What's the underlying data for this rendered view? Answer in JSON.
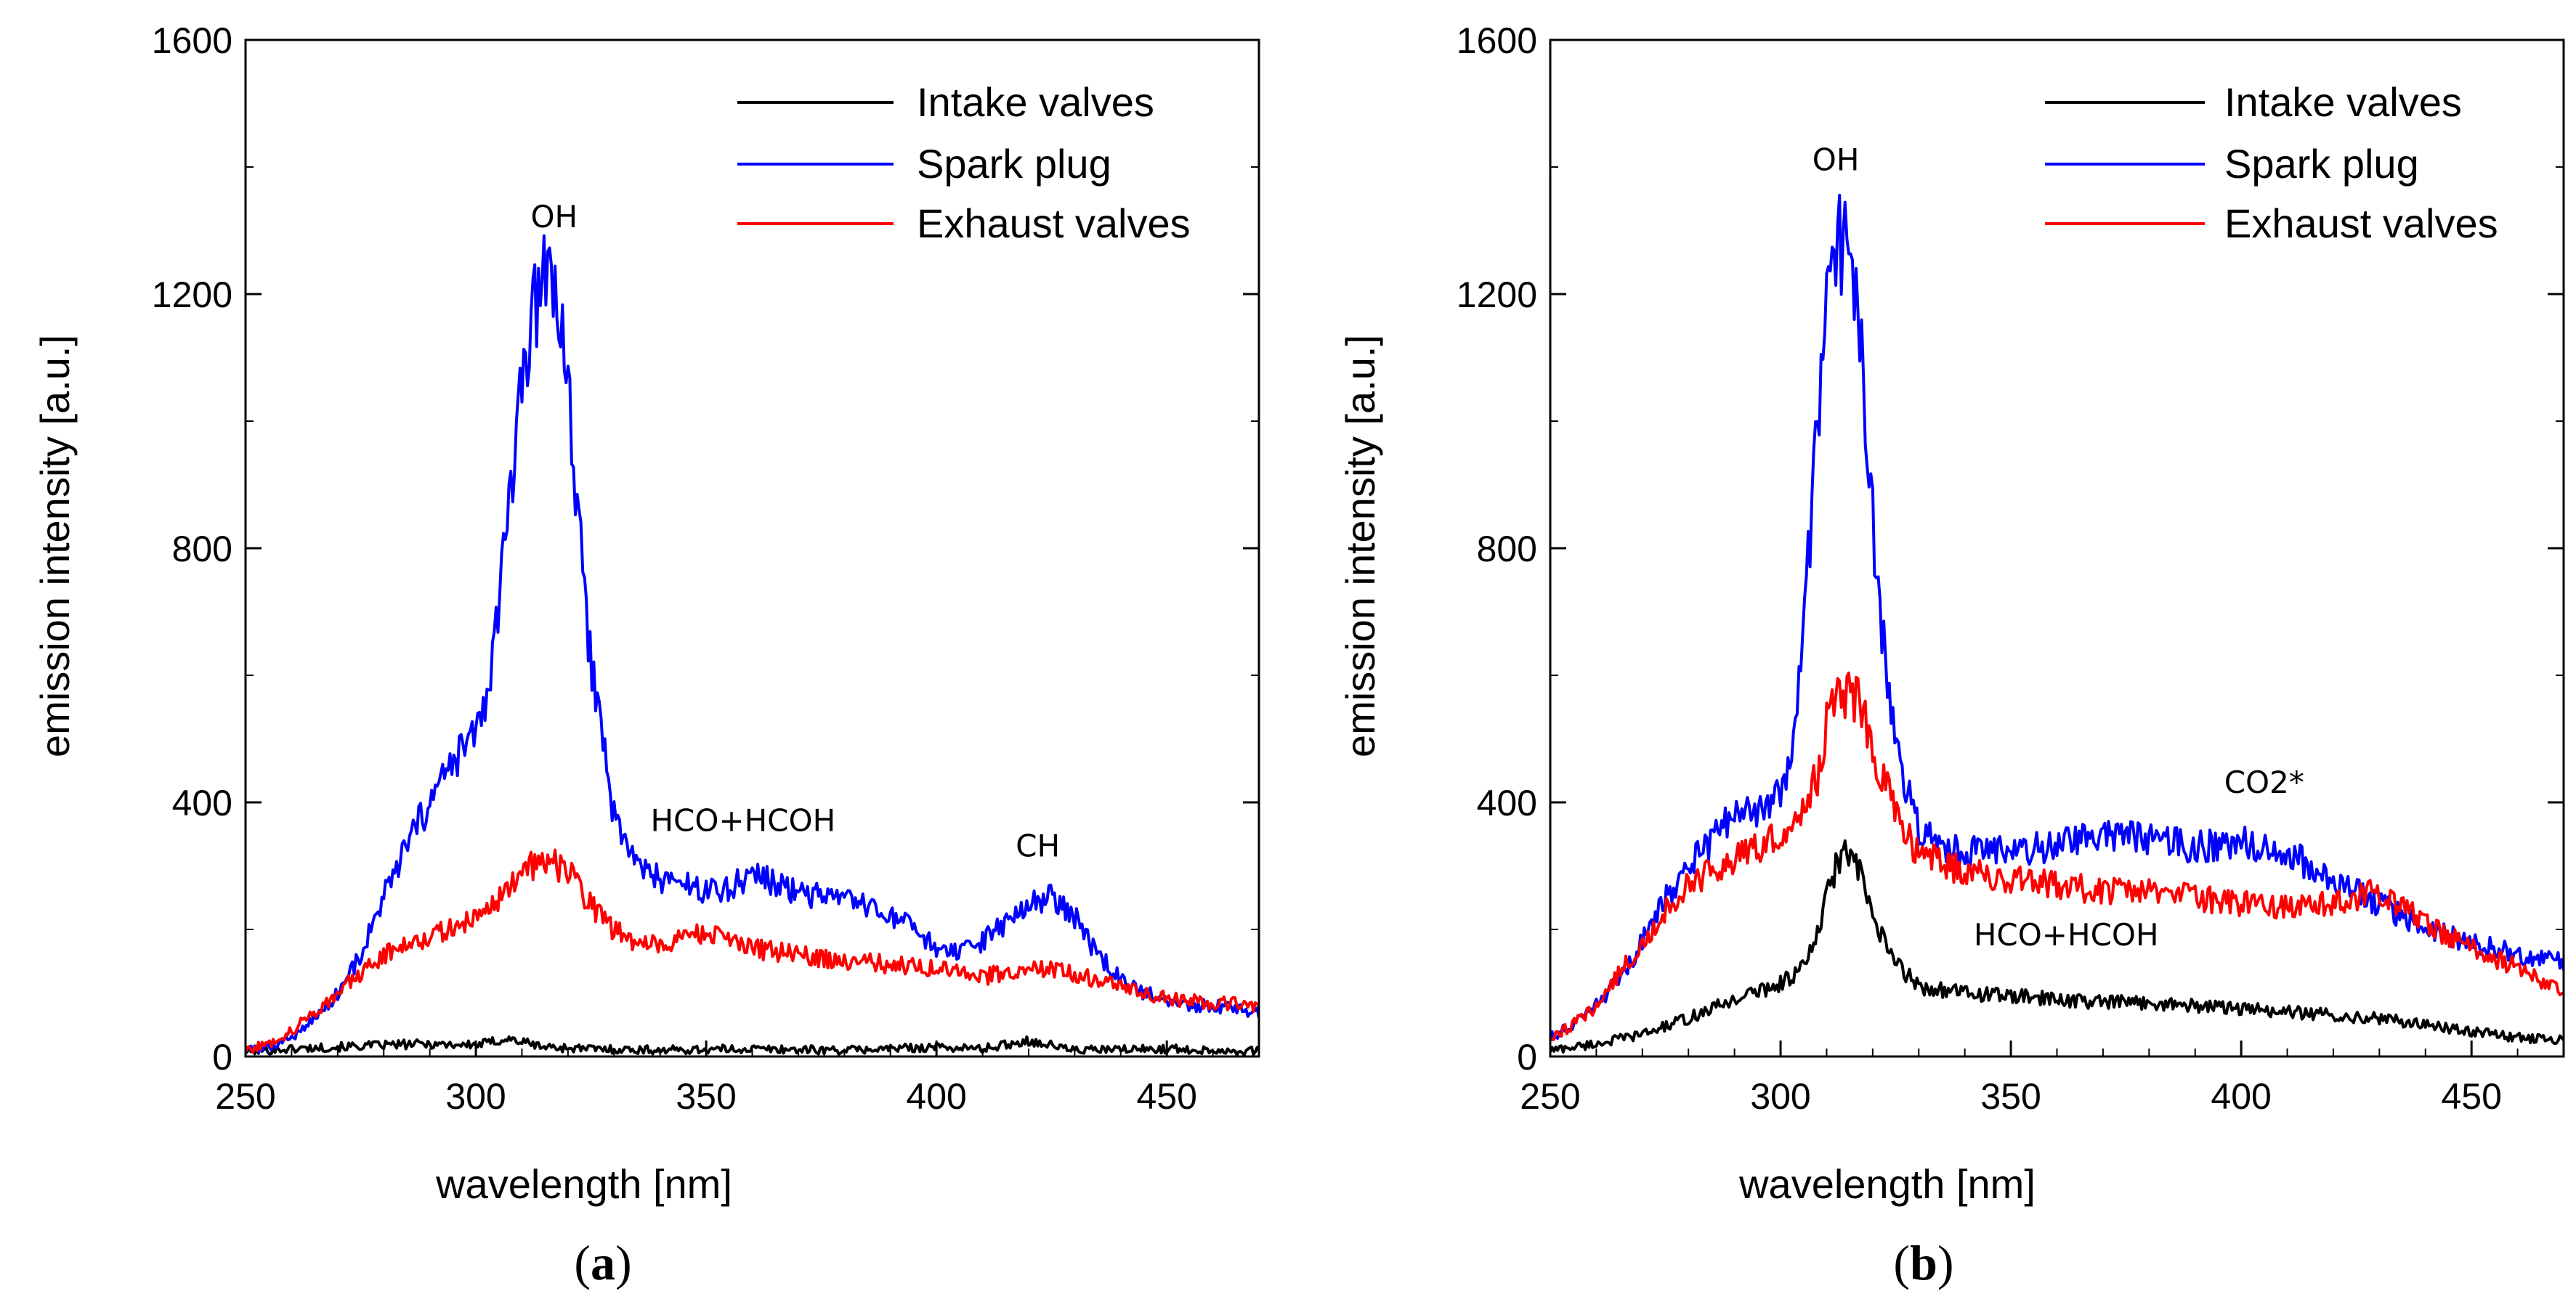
{
  "chart_data": [
    {
      "type": "line",
      "panel_label": "a",
      "xlabel": "wavelength [nm]",
      "ylabel": "emission intensity [a.u.]",
      "xlim": [
        250,
        470
      ],
      "ylim": [
        0,
        1600
      ],
      "xticks": [
        250,
        300,
        350,
        400,
        450
      ],
      "yticks": [
        0,
        400,
        800,
        1200,
        1600
      ],
      "legend_position": "top-right",
      "series": [
        {
          "name": "Intake valves",
          "color": "#000000",
          "x": [
            250,
            260,
            270,
            280,
            290,
            300,
            307,
            315,
            325,
            340,
            360,
            380,
            400,
            410,
            420,
            430,
            450,
            470
          ],
          "values": [
            8,
            12,
            15,
            18,
            20,
            18,
            28,
            15,
            12,
            10,
            12,
            10,
            15,
            12,
            25,
            10,
            12,
            8
          ]
        },
        {
          "name": "Spark plug",
          "color": "#0000ff",
          "x": [
            250,
            255,
            260,
            265,
            270,
            275,
            280,
            285,
            290,
            295,
            300,
            303,
            305,
            308,
            310,
            312,
            314,
            316,
            318,
            320,
            322,
            325,
            328,
            330,
            335,
            340,
            345,
            350,
            355,
            360,
            365,
            370,
            375,
            380,
            385,
            390,
            395,
            400,
            405,
            410,
            415,
            420,
            425,
            430,
            435,
            440,
            445,
            450,
            455,
            460,
            465,
            470
          ],
          "values": [
            10,
            15,
            30,
            60,
            100,
            160,
            250,
            330,
            400,
            460,
            510,
            580,
            720,
            900,
            1050,
            1150,
            1210,
            1250,
            1180,
            1050,
            850,
            620,
            480,
            380,
            300,
            280,
            270,
            260,
            265,
            290,
            270,
            260,
            250,
            245,
            235,
            220,
            200,
            170,
            160,
            180,
            210,
            240,
            250,
            220,
            160,
            120,
            100,
            90,
            80,
            80,
            75,
            70
          ]
        },
        {
          "name": "Exhaust valves",
          "color": "#ff0000",
          "x": [
            250,
            255,
            260,
            265,
            270,
            275,
            280,
            285,
            290,
            295,
            300,
            305,
            310,
            315,
            320,
            325,
            330,
            335,
            340,
            345,
            350,
            355,
            360,
            370,
            380,
            390,
            400,
            410,
            420,
            430,
            440,
            450,
            460,
            470
          ],
          "values": [
            10,
            20,
            40,
            70,
            100,
            130,
            160,
            180,
            190,
            200,
            220,
            250,
            290,
            310,
            290,
            240,
            200,
            180,
            175,
            190,
            195,
            180,
            170,
            160,
            150,
            145,
            140,
            125,
            140,
            130,
            110,
            90,
            85,
            80
          ]
        }
      ],
      "annotations": [
        {
          "text": "OH",
          "x": 317,
          "y": 1305
        },
        {
          "text": "HCO+HCOH",
          "x": 358,
          "y": 355
        },
        {
          "text": "CH",
          "x": 422,
          "y": 315
        }
      ]
    },
    {
      "type": "line",
      "panel_label": "b",
      "xlabel": "wavelength [nm]",
      "ylabel": "emission intensity [a.u.]",
      "xlim": [
        250,
        470
      ],
      "ylim": [
        0,
        1600
      ],
      "xticks": [
        250,
        300,
        350,
        400,
        450
      ],
      "yticks": [
        0,
        400,
        800,
        1200,
        1600
      ],
      "legend_position": "top-right",
      "series": [
        {
          "name": "Intake valves",
          "color": "#000000",
          "x": [
            250,
            260,
            270,
            280,
            290,
            300,
            305,
            308,
            310,
            312,
            314,
            316,
            318,
            320,
            323,
            326,
            330,
            340,
            350,
            360,
            370,
            380,
            390,
            400,
            410,
            420,
            430,
            440,
            450,
            460,
            470
          ],
          "values": [
            10,
            20,
            35,
            60,
            90,
            115,
            140,
            190,
            250,
            300,
            320,
            310,
            270,
            220,
            170,
            140,
            110,
            100,
            95,
            90,
            85,
            85,
            80,
            75,
            70,
            65,
            60,
            50,
            40,
            30,
            25
          ]
        },
        {
          "name": "Spark plug",
          "color": "#0000ff",
          "x": [
            250,
            255,
            260,
            265,
            270,
            275,
            280,
            285,
            290,
            295,
            300,
            303,
            305,
            307,
            309,
            311,
            313,
            315,
            317,
            319,
            321,
            323,
            326,
            330,
            335,
            340,
            350,
            360,
            370,
            380,
            390,
            400,
            410,
            420,
            430,
            440,
            450,
            460,
            470
          ],
          "values": [
            30,
            50,
            80,
            120,
            180,
            250,
            300,
            340,
            380,
            380,
            420,
            500,
            650,
            900,
            1100,
            1230,
            1280,
            1250,
            1150,
            950,
            750,
            600,
            450,
            360,
            330,
            320,
            325,
            330,
            350,
            340,
            330,
            340,
            320,
            280,
            240,
            200,
            180,
            160,
            150
          ]
        },
        {
          "name": "Exhaust valves",
          "color": "#ff0000",
          "x": [
            250,
            255,
            260,
            265,
            270,
            275,
            280,
            285,
            290,
            295,
            300,
            305,
            308,
            310,
            312,
            315,
            318,
            320,
            323,
            326,
            330,
            340,
            350,
            360,
            370,
            380,
            390,
            400,
            410,
            420,
            430,
            440,
            450,
            460,
            470
          ],
          "values": [
            30,
            50,
            80,
            130,
            180,
            230,
            270,
            290,
            310,
            330,
            350,
            390,
            440,
            520,
            560,
            570,
            550,
            480,
            420,
            360,
            320,
            290,
            280,
            270,
            260,
            260,
            250,
            240,
            235,
            240,
            260,
            210,
            170,
            140,
            100
          ]
        }
      ],
      "annotations": [
        {
          "text": "OH",
          "x": 312,
          "y": 1395
        },
        {
          "text": "CO2*",
          "x": 405,
          "y": 415
        },
        {
          "text": "HCO+HCOH",
          "x": 362,
          "y": 175
        }
      ]
    }
  ]
}
